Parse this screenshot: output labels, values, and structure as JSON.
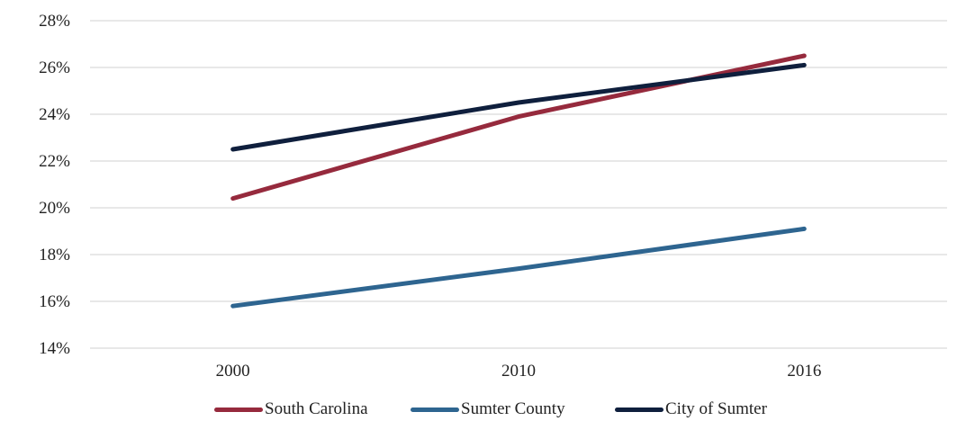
{
  "chart_data": {
    "type": "line",
    "categories": [
      "2000",
      "2010",
      "2016"
    ],
    "ylim": [
      0.14,
      0.28
    ],
    "ytick_labels": [
      "14%",
      "16%",
      "18%",
      "20%",
      "22%",
      "24%",
      "26%",
      "28%"
    ],
    "grid": true,
    "legend_position": "bottom",
    "series": [
      {
        "name": "South Carolina",
        "color": "#962a3d",
        "values": [
          0.204,
          0.239,
          0.265
        ]
      },
      {
        "name": "Sumter County",
        "color": "#2e6590",
        "values": [
          0.158,
          0.174,
          0.191
        ]
      },
      {
        "name": "City of Sumter",
        "color": "#0f1f3d",
        "values": [
          0.225,
          0.245,
          0.261
        ]
      }
    ]
  }
}
